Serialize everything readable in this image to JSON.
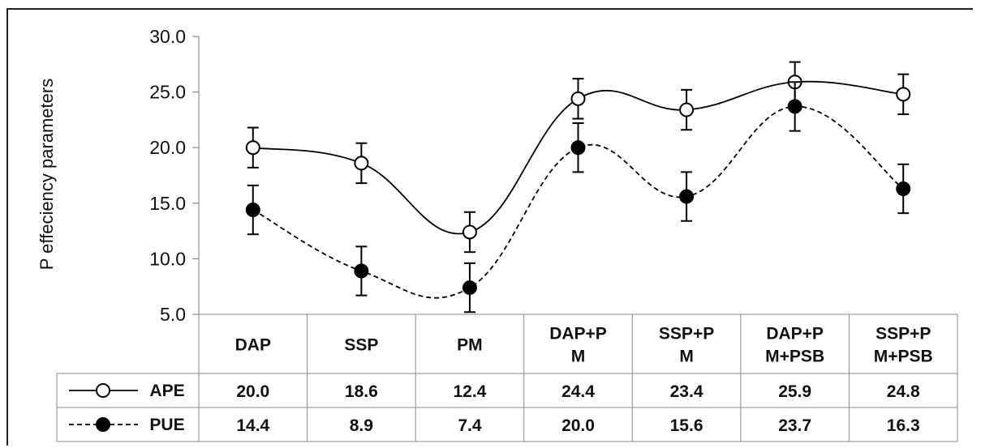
{
  "chart_data": {
    "type": "line",
    "ylabel": "P effeciency parameters",
    "xlabel": "",
    "ylim": [
      5.0,
      30.0
    ],
    "yticks": [
      "5.0",
      "10.0",
      "15.0",
      "20.0",
      "25.0",
      "30.0"
    ],
    "categories": [
      [
        "DAP"
      ],
      [
        "SSP"
      ],
      [
        "PM"
      ],
      [
        "DAP+P",
        "M"
      ],
      [
        "SSP+P",
        "M"
      ],
      [
        "DAP+P",
        "M+PSB"
      ],
      [
        "SSP+P",
        "M+PSB"
      ]
    ],
    "series": [
      {
        "name": "APE",
        "marker": "open-circle",
        "line": "solid",
        "color": "#000000",
        "values": [
          20.0,
          18.6,
          12.4,
          24.4,
          23.4,
          25.9,
          24.8
        ],
        "error": [
          1.8,
          1.8,
          1.8,
          1.8,
          1.8,
          1.8,
          1.8
        ],
        "labels": [
          "20.0",
          "18.6",
          "12.4",
          "24.4",
          "23.4",
          "25.9",
          "24.8"
        ]
      },
      {
        "name": "PUE",
        "marker": "filled-circle",
        "line": "dashed",
        "color": "#000000",
        "values": [
          14.4,
          8.9,
          7.4,
          20.0,
          15.6,
          23.7,
          16.3
        ],
        "error": [
          2.2,
          2.2,
          2.2,
          2.2,
          2.2,
          2.2,
          2.2
        ],
        "labels": [
          "14.4",
          "8.9",
          "7.4",
          "20.0",
          "15.6",
          "23.7",
          "16.3"
        ]
      }
    ],
    "grid": false
  }
}
